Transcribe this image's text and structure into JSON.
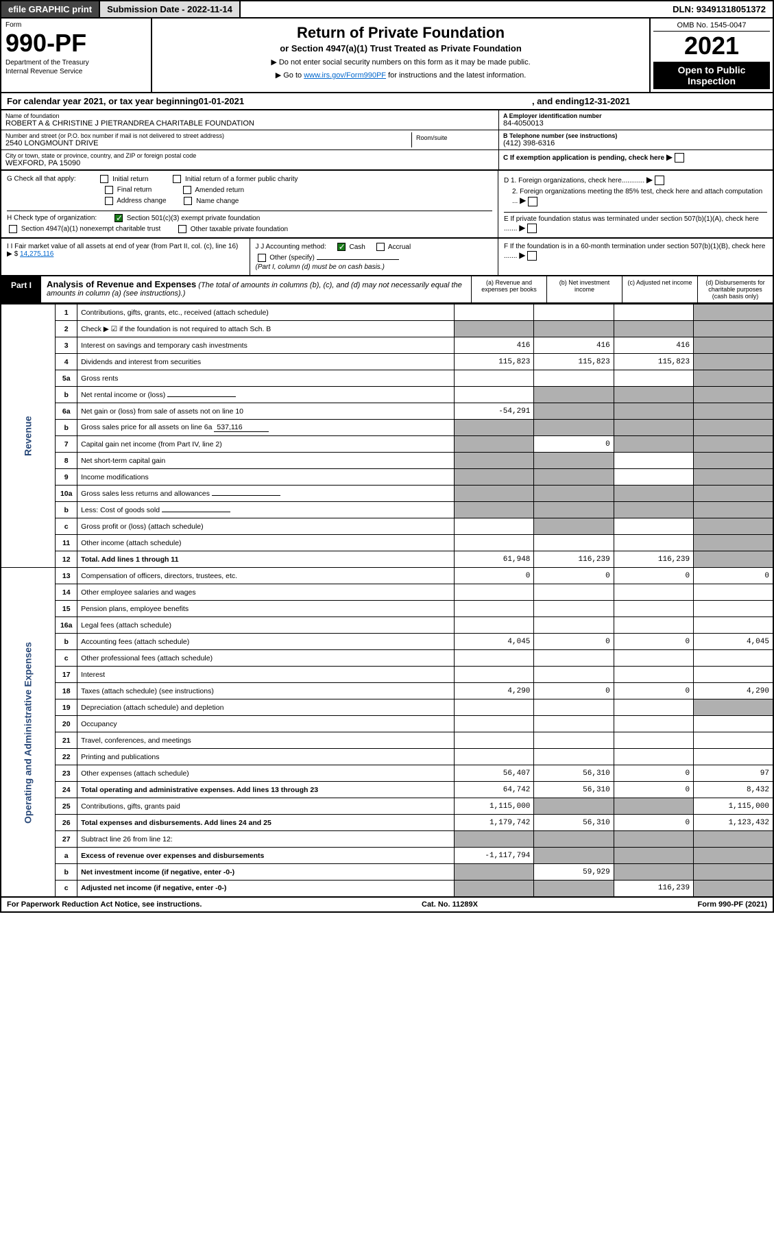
{
  "topbar": {
    "efile": "efile GRAPHIC print",
    "submission": "Submission Date - 2022-11-14",
    "dln": "DLN: 93491318051372"
  },
  "header": {
    "form_label": "Form",
    "form_number": "990-PF",
    "dept1": "Department of the Treasury",
    "dept2": "Internal Revenue Service",
    "title": "Return of Private Foundation",
    "subtitle": "or Section 4947(a)(1) Trust Treated as Private Foundation",
    "note1": "▶ Do not enter social security numbers on this form as it may be made public.",
    "note2_pre": "▶ Go to ",
    "note2_link": "www.irs.gov/Form990PF",
    "note2_post": " for instructions and the latest information.",
    "omb": "OMB No. 1545-0047",
    "year": "2021",
    "open": "Open to Public Inspection"
  },
  "calyear": {
    "pre": "For calendar year 2021, or tax year beginning ",
    "begin": "01-01-2021",
    "mid": " , and ending ",
    "end": "12-31-2021"
  },
  "entity": {
    "name_label": "Name of foundation",
    "name": "ROBERT A & CHRISTINE J PIETRANDREA CHARITABLE FOUNDATION",
    "addr_label": "Number and street (or P.O. box number if mail is not delivered to street address)",
    "addr": "2540 LONGMOUNT DRIVE",
    "room_label": "Room/suite",
    "city_label": "City or town, state or province, country, and ZIP or foreign postal code",
    "city": "WEXFORD, PA  15090",
    "ein_label": "A Employer identification number",
    "ein": "84-4050013",
    "phone_label": "B Telephone number (see instructions)",
    "phone": "(412) 398-6316",
    "c_label": "C If exemption application is pending, check here",
    "d1": "D 1. Foreign organizations, check here............",
    "d2": "2. Foreign organizations meeting the 85% test, check here and attach computation ...",
    "e": "E If private foundation status was terminated under section 507(b)(1)(A), check here .......",
    "f": "F If the foundation is in a 60-month termination under section 507(b)(1)(B), check here .......",
    "g_label": "G Check all that apply:",
    "g_opts": [
      "Initial return",
      "Initial return of a former public charity",
      "Final return",
      "Amended return",
      "Address change",
      "Name change"
    ],
    "h_label": "H Check type of organization:",
    "h_opt1": "Section 501(c)(3) exempt private foundation",
    "h_opt2": "Section 4947(a)(1) nonexempt charitable trust",
    "h_opt3": "Other taxable private foundation",
    "i_label": "I Fair market value of all assets at end of year (from Part II, col. (c), line 16)",
    "i_amount": "14,275,116",
    "j_label": "J Accounting method:",
    "j_cash": "Cash",
    "j_accrual": "Accrual",
    "j_other": "Other (specify)",
    "j_note": "(Part I, column (d) must be on cash basis.)"
  },
  "part1": {
    "badge": "Part I",
    "title": "Analysis of Revenue and Expenses",
    "title_note": "(The total of amounts in columns (b), (c), and (d) may not necessarily equal the amounts in column (a) (see instructions).)",
    "col_a": "(a) Revenue and expenses per books",
    "col_b": "(b) Net investment income",
    "col_c": "(c) Adjusted net income",
    "col_d": "(d) Disbursements for charitable purposes (cash basis only)"
  },
  "sidelabels": {
    "revenue": "Revenue",
    "expenses": "Operating and Administrative Expenses"
  },
  "rows": [
    {
      "n": "1",
      "d": "Contributions, gifts, grants, etc., received (attach schedule)",
      "a": "",
      "b": "",
      "c": "",
      "dcol": "",
      "shade_d": true
    },
    {
      "n": "2",
      "d": "Check ▶ ☑ if the foundation is not required to attach Sch. B",
      "a": "",
      "b": "",
      "c": "",
      "dcol": "",
      "shade_all": true,
      "check": true
    },
    {
      "n": "3",
      "d": "Interest on savings and temporary cash investments",
      "a": "416",
      "b": "416",
      "c": "416",
      "dcol": "",
      "shade_d": true
    },
    {
      "n": "4",
      "d": "Dividends and interest from securities",
      "a": "115,823",
      "b": "115,823",
      "c": "115,823",
      "dcol": "",
      "shade_d": true
    },
    {
      "n": "5a",
      "d": "Gross rents",
      "a": "",
      "b": "",
      "c": "",
      "dcol": "",
      "shade_d": true
    },
    {
      "n": "b",
      "d": "Net rental income or (loss)",
      "a": "",
      "b": "",
      "c": "",
      "dcol": "",
      "inset": true,
      "shade_bcd": true
    },
    {
      "n": "6a",
      "d": "Net gain or (loss) from sale of assets not on line 10",
      "a": "-54,291",
      "b": "",
      "c": "",
      "dcol": "",
      "shade_bcd": true
    },
    {
      "n": "b",
      "d": "Gross sales price for all assets on line 6a",
      "a": "",
      "b": "",
      "c": "",
      "dcol": "",
      "inset": true,
      "inset_val": "537,116",
      "shade_all": true
    },
    {
      "n": "7",
      "d": "Capital gain net income (from Part IV, line 2)",
      "a": "",
      "b": "0",
      "c": "",
      "dcol": "",
      "shade_a": true,
      "shade_cd": true
    },
    {
      "n": "8",
      "d": "Net short-term capital gain",
      "a": "",
      "b": "",
      "c": "",
      "dcol": "",
      "shade_ab": true,
      "shade_d": true
    },
    {
      "n": "9",
      "d": "Income modifications",
      "a": "",
      "b": "",
      "c": "",
      "dcol": "",
      "shade_ab": true,
      "shade_d": true
    },
    {
      "n": "10a",
      "d": "Gross sales less returns and allowances",
      "a": "",
      "b": "",
      "c": "",
      "dcol": "",
      "inset": true,
      "shade_all": true
    },
    {
      "n": "b",
      "d": "Less: Cost of goods sold",
      "a": "",
      "b": "",
      "c": "",
      "dcol": "",
      "inset": true,
      "shade_all": true
    },
    {
      "n": "c",
      "d": "Gross profit or (loss) (attach schedule)",
      "a": "",
      "b": "",
      "c": "",
      "dcol": "",
      "shade_bd": true
    },
    {
      "n": "11",
      "d": "Other income (attach schedule)",
      "a": "",
      "b": "",
      "c": "",
      "dcol": "",
      "shade_d": true
    },
    {
      "n": "12",
      "d": "Total. Add lines 1 through 11",
      "a": "61,948",
      "b": "116,239",
      "c": "116,239",
      "dcol": "",
      "bold": true,
      "shade_d": true
    },
    {
      "n": "13",
      "d": "Compensation of officers, directors, trustees, etc.",
      "a": "0",
      "b": "0",
      "c": "0",
      "dcol": "0"
    },
    {
      "n": "14",
      "d": "Other employee salaries and wages",
      "a": "",
      "b": "",
      "c": "",
      "dcol": ""
    },
    {
      "n": "15",
      "d": "Pension plans, employee benefits",
      "a": "",
      "b": "",
      "c": "",
      "dcol": ""
    },
    {
      "n": "16a",
      "d": "Legal fees (attach schedule)",
      "a": "",
      "b": "",
      "c": "",
      "dcol": ""
    },
    {
      "n": "b",
      "d": "Accounting fees (attach schedule)",
      "a": "4,045",
      "b": "0",
      "c": "0",
      "dcol": "4,045"
    },
    {
      "n": "c",
      "d": "Other professional fees (attach schedule)",
      "a": "",
      "b": "",
      "c": "",
      "dcol": ""
    },
    {
      "n": "17",
      "d": "Interest",
      "a": "",
      "b": "",
      "c": "",
      "dcol": ""
    },
    {
      "n": "18",
      "d": "Taxes (attach schedule) (see instructions)",
      "a": "4,290",
      "b": "0",
      "c": "0",
      "dcol": "4,290"
    },
    {
      "n": "19",
      "d": "Depreciation (attach schedule) and depletion",
      "a": "",
      "b": "",
      "c": "",
      "dcol": "",
      "shade_d": true
    },
    {
      "n": "20",
      "d": "Occupancy",
      "a": "",
      "b": "",
      "c": "",
      "dcol": ""
    },
    {
      "n": "21",
      "d": "Travel, conferences, and meetings",
      "a": "",
      "b": "",
      "c": "",
      "dcol": ""
    },
    {
      "n": "22",
      "d": "Printing and publications",
      "a": "",
      "b": "",
      "c": "",
      "dcol": ""
    },
    {
      "n": "23",
      "d": "Other expenses (attach schedule)",
      "a": "56,407",
      "b": "56,310",
      "c": "0",
      "dcol": "97"
    },
    {
      "n": "24",
      "d": "Total operating and administrative expenses. Add lines 13 through 23",
      "a": "64,742",
      "b": "56,310",
      "c": "0",
      "dcol": "8,432",
      "bold": true
    },
    {
      "n": "25",
      "d": "Contributions, gifts, grants paid",
      "a": "1,115,000",
      "b": "",
      "c": "",
      "dcol": "1,115,000",
      "shade_bc": true
    },
    {
      "n": "26",
      "d": "Total expenses and disbursements. Add lines 24 and 25",
      "a": "1,179,742",
      "b": "56,310",
      "c": "0",
      "dcol": "1,123,432",
      "bold": true
    },
    {
      "n": "27",
      "d": "Subtract line 26 from line 12:",
      "a": "",
      "b": "",
      "c": "",
      "dcol": "",
      "shade_all": true
    },
    {
      "n": "a",
      "d": "Excess of revenue over expenses and disbursements",
      "a": "-1,117,794",
      "b": "",
      "c": "",
      "dcol": "",
      "bold": true,
      "shade_bcd": true
    },
    {
      "n": "b",
      "d": "Net investment income (if negative, enter -0-)",
      "a": "",
      "b": "59,929",
      "c": "",
      "dcol": "",
      "bold": true,
      "shade_a": true,
      "shade_cd": true
    },
    {
      "n": "c",
      "d": "Adjusted net income (if negative, enter -0-)",
      "a": "",
      "b": "",
      "c": "116,239",
      "dcol": "",
      "bold": true,
      "shade_ab": true,
      "shade_d": true
    }
  ],
  "footer": {
    "left": "For Paperwork Reduction Act Notice, see instructions.",
    "center": "Cat. No. 11289X",
    "right": "Form 990-PF (2021)"
  },
  "colors": {
    "bg": "#ffffff",
    "border": "#000000",
    "link": "#0066cc",
    "shaded": "#b0b0b0",
    "dark_btn": "#444444",
    "check_green": "#1a7a1a",
    "vlabel_color": "#2a4a7a"
  }
}
